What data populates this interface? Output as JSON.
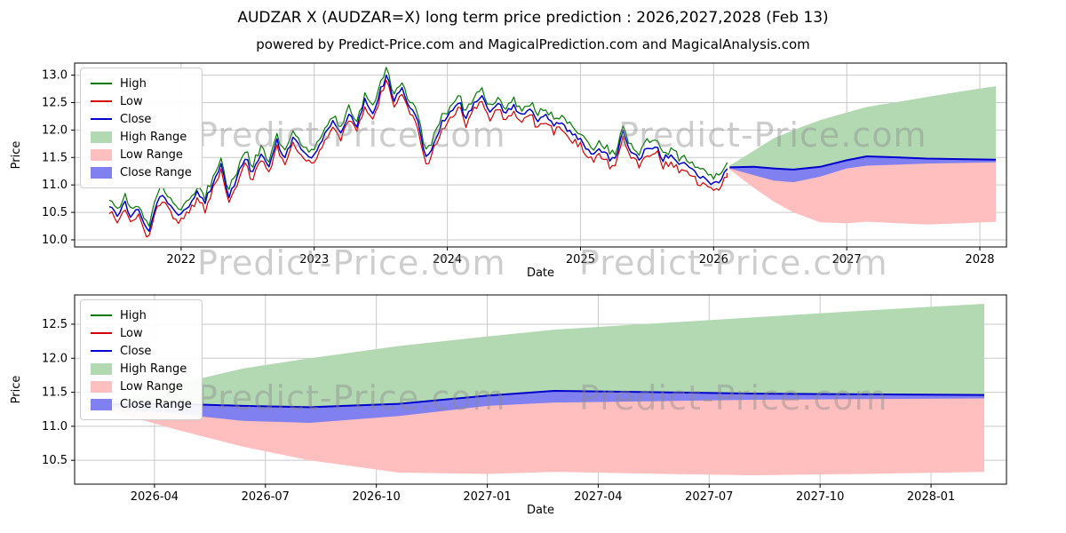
{
  "page": {
    "title": "AUDZAR X (AUDZAR=X) long term price prediction : 2026,2027,2028 (Feb 13)",
    "subtitle": "powered by Predict-Price.com and MagicalPrediction.com and MagicalAnalysis.com",
    "watermark": "Predict-Price.com"
  },
  "colors": {
    "high_line": "#007a00",
    "low_line": "#d40000",
    "close_line": "#0000cc",
    "high_fill": "#b3d9b3",
    "low_fill": "#ffbfbf",
    "close_fill": "#8080f0",
    "grid": "#c9c9c9",
    "spine": "#000000",
    "tick_text": "#000000"
  },
  "legend": {
    "items": [
      {
        "label": "High",
        "swatch": "line",
        "color": "#007a00"
      },
      {
        "label": "Low",
        "swatch": "line",
        "color": "#d40000"
      },
      {
        "label": "Close",
        "swatch": "line",
        "color": "#0000cc"
      },
      {
        "label": "High Range",
        "swatch": "patch",
        "color": "#b3d9b3"
      },
      {
        "label": "Low Range",
        "swatch": "patch",
        "color": "#ffbfbf"
      },
      {
        "label": "Close Range",
        "swatch": "patch",
        "color": "#8080f0"
      }
    ]
  },
  "chart_data": {
    "type": "line",
    "title": "AUDZAR X (AUDZAR=X) long term price prediction : 2026,2027,2028 (Feb 13)",
    "subtitle": "powered by Predict-Price.com and MagicalPrediction.com and MagicalAnalysis.com",
    "historical": {
      "note": "approximate AUDZAR close anchors, decimal years; high/low drawn as close +/- spread",
      "x": [
        2021.46,
        2021.52,
        2021.58,
        2021.62,
        2021.68,
        2021.72,
        2021.76,
        2021.8,
        2021.85,
        2021.9,
        2021.95,
        2022.0,
        2022.06,
        2022.12,
        2022.18,
        2022.24,
        2022.3,
        2022.36,
        2022.42,
        2022.48,
        2022.54,
        2022.6,
        2022.66,
        2022.72,
        2022.78,
        2022.84,
        2022.9,
        2022.96,
        2023.02,
        2023.08,
        2023.14,
        2023.2,
        2023.26,
        2023.32,
        2023.38,
        2023.44,
        2023.5,
        2023.55,
        2023.6,
        2023.66,
        2023.72,
        2023.78,
        2023.84,
        2023.9,
        2023.96,
        2024.02,
        2024.08,
        2024.14,
        2024.2,
        2024.26,
        2024.32,
        2024.38,
        2024.44,
        2024.5,
        2024.56,
        2024.62,
        2024.68,
        2024.74,
        2024.8,
        2024.86,
        2024.92,
        2024.98,
        2025.04,
        2025.1,
        2025.16,
        2025.22,
        2025.28,
        2025.32,
        2025.38,
        2025.44,
        2025.5,
        2025.56,
        2025.62,
        2025.68,
        2025.74,
        2025.8,
        2025.86,
        2025.92,
        2025.98,
        2026.04,
        2026.1
      ],
      "close": [
        10.6,
        10.45,
        10.7,
        10.4,
        10.55,
        10.3,
        10.15,
        10.55,
        10.85,
        10.7,
        10.5,
        10.45,
        10.6,
        10.85,
        10.7,
        11.05,
        11.35,
        10.8,
        11.15,
        11.5,
        11.2,
        11.6,
        11.35,
        11.8,
        11.5,
        11.85,
        11.65,
        11.5,
        11.6,
        11.95,
        12.2,
        11.9,
        12.35,
        12.05,
        12.55,
        12.3,
        12.75,
        13.0,
        12.55,
        12.8,
        12.4,
        12.2,
        11.5,
        11.75,
        12.15,
        12.3,
        12.55,
        12.25,
        12.5,
        12.6,
        12.35,
        12.5,
        12.3,
        12.45,
        12.25,
        12.4,
        12.2,
        12.3,
        12.05,
        12.15,
        11.95,
        11.85,
        11.7,
        11.55,
        11.65,
        11.45,
        11.55,
        12.0,
        11.6,
        11.5,
        11.65,
        11.75,
        11.45,
        11.55,
        11.35,
        11.4,
        11.2,
        11.1,
        11.05,
        11.0,
        11.3
      ]
    },
    "noise": {
      "step": 0.02,
      "close_jitter": 0.05,
      "spread_base": 0.06,
      "spread_jitter": 0.11,
      "seed": 11
    },
    "forecast": {
      "x": [
        2026.12,
        2026.3,
        2026.45,
        2026.6,
        2026.8,
        2027.0,
        2027.15,
        2027.4,
        2027.6,
        2027.85,
        2028.12
      ],
      "high": [
        11.35,
        11.62,
        11.85,
        12.0,
        12.18,
        12.32,
        12.42,
        12.52,
        12.6,
        12.7,
        12.8
      ],
      "low": [
        11.28,
        10.95,
        10.7,
        10.5,
        10.32,
        10.3,
        10.33,
        10.3,
        10.28,
        10.3,
        10.33
      ],
      "close": [
        11.32,
        11.33,
        11.3,
        11.28,
        11.33,
        11.45,
        11.52,
        11.5,
        11.48,
        11.47,
        11.46
      ],
      "close_low": [
        11.3,
        11.18,
        11.08,
        11.05,
        11.15,
        11.3,
        11.35,
        11.37,
        11.39,
        11.4,
        11.41
      ]
    },
    "subplots": [
      {
        "xlabel": "Date",
        "ylabel": "Price",
        "xlim": [
          2021.2,
          2028.2
        ],
        "ylim": [
          9.87,
          13.22
        ],
        "xticks": [
          {
            "v": 2022,
            "t": "2022"
          },
          {
            "v": 2023,
            "t": "2023"
          },
          {
            "v": 2024,
            "t": "2024"
          },
          {
            "v": 2025,
            "t": "2025"
          },
          {
            "v": 2026,
            "t": "2026"
          },
          {
            "v": 2027,
            "t": "2027"
          },
          {
            "v": 2028,
            "t": "2028"
          }
        ],
        "yticks": [
          {
            "v": 10.0,
            "t": "10.0"
          },
          {
            "v": 10.5,
            "t": "10.5"
          },
          {
            "v": 11.0,
            "t": "11.0"
          },
          {
            "v": 11.5,
            "t": "11.5"
          },
          {
            "v": 12.0,
            "t": "12.0"
          },
          {
            "v": 12.5,
            "t": "12.5"
          },
          {
            "v": 13.0,
            "t": "13.0"
          }
        ],
        "show_historical": true,
        "grid": true,
        "legend_position": "upper left"
      },
      {
        "xlabel": "Date",
        "ylabel": "Price",
        "xlim": [
          2026.07,
          2028.17
        ],
        "ylim": [
          10.15,
          12.93
        ],
        "xticks": [
          {
            "v": 2026.25,
            "t": "2026-04"
          },
          {
            "v": 2026.5,
            "t": "2026-07"
          },
          {
            "v": 2026.75,
            "t": "2026-10"
          },
          {
            "v": 2027.0,
            "t": "2027-01"
          },
          {
            "v": 2027.25,
            "t": "2027-04"
          },
          {
            "v": 2027.5,
            "t": "2027-07"
          },
          {
            "v": 2027.75,
            "t": "2027-10"
          },
          {
            "v": 2028.0,
            "t": "2028-01"
          }
        ],
        "yticks": [
          {
            "v": 10.5,
            "t": "10.5"
          },
          {
            "v": 11.0,
            "t": "11.0"
          },
          {
            "v": 11.5,
            "t": "11.5"
          },
          {
            "v": 12.0,
            "t": "12.0"
          },
          {
            "v": 12.5,
            "t": "12.5"
          }
        ],
        "show_historical": false,
        "grid": true,
        "legend_position": "upper left"
      }
    ]
  }
}
